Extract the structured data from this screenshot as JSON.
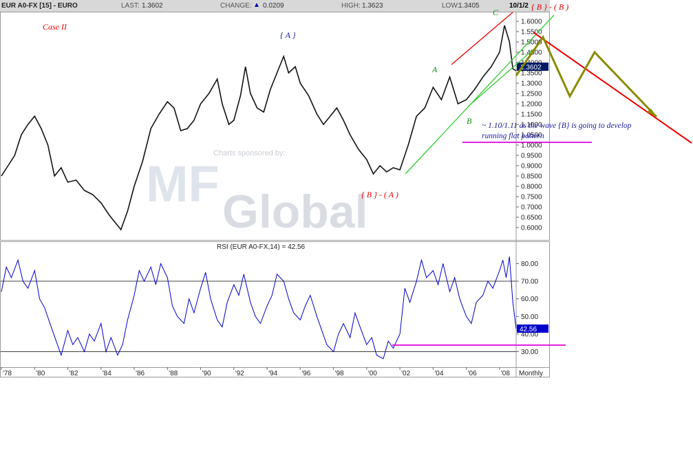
{
  "header": {
    "symbol": "EUR A0-FX [15] - EURO",
    "last_label": "LAST:",
    "last_value": "1.3602",
    "change_label": "CHANGE:",
    "change_value": "0.0209",
    "high_label": "HIGH:",
    "high_value": "1.3623",
    "low_label": "LOW:",
    "low_value": "1.3405",
    "date": "10/1/2"
  },
  "watermark": {
    "sponsor": "Charts sponsored by:",
    "mf": "MF",
    "global": "Global"
  },
  "colors": {
    "price": "#111111",
    "rsi": "#0000cc",
    "panel_border": "#999999",
    "red": "#ee0000",
    "green": "#33cc33",
    "olive": "#8a8a00",
    "magenta": "#dd00dd",
    "annotation_blue": "#1a1aa0",
    "last_box": "#001a66",
    "rsi_box": "#0000cc"
  },
  "annotations": {
    "case": "Case II",
    "wave_A_top": "{ A }",
    "wave_B_A": "{ B } - ( A )",
    "wave_B_B": "{ B } - ( B )",
    "wave_a": "A",
    "wave_b": "B",
    "wave_c": "C",
    "note_line1": "~ 1.10/1.11 as the wave {B} is going to develop",
    "note_line2": "running flat pattern"
  },
  "chart_data": [
    {
      "type": "line",
      "title": "EUR A0-FX [15] - EURO",
      "ylim": [
        0.55,
        1.63
      ],
      "y_ticks": [
        0.6,
        0.65,
        0.7,
        0.75,
        0.8,
        0.85,
        0.9,
        0.95,
        1.0,
        1.05,
        1.1,
        1.15,
        1.2,
        1.25,
        1.3,
        1.35,
        1.4,
        1.45,
        1.5,
        1.55,
        1.6
      ],
      "y_tick_labels": [
        "0.6000",
        "0.6500",
        "0.7000",
        "0.7500",
        "0.8000",
        "0.8500",
        "0.9000",
        "0.9500",
        "1.0000",
        "1.0500",
        "1.1000",
        "1.1500",
        "1.2000",
        "1.2500",
        "1.3000",
        "1.3500",
        "1.4000",
        "1.4500",
        "1.5000",
        "1.5500",
        "1.6000"
      ],
      "last_value_label": "1.3602",
      "series": [
        {
          "x": [
            1978.0,
            1978.4,
            1978.8,
            1979.2,
            1979.6,
            1980.0,
            1980.4,
            1980.8,
            1981.2,
            1981.6,
            1982.0,
            1982.5,
            1983.0,
            1983.5,
            1984.0,
            1984.5,
            1985.0,
            1985.2,
            1985.6,
            1986.0,
            1986.5,
            1987.0,
            1987.5,
            1988.0,
            1988.4,
            1988.8,
            1989.2,
            1989.6,
            1990.0,
            1990.5,
            1991.0,
            1991.3,
            1991.7,
            1992.0,
            1992.4,
            1992.7,
            1993.0,
            1993.4,
            1993.8,
            1994.2,
            1994.6,
            1995.0,
            1995.3,
            1995.7,
            1996.0,
            1996.5,
            1997.0,
            1997.4,
            1997.8,
            1998.2,
            1998.6,
            1999.0,
            1999.5,
            2000.0,
            2000.4,
            2000.8,
            2001.2,
            2001.6,
            2002.0,
            2002.5,
            2003.0,
            2003.5,
            2004.0,
            2004.5,
            2005.0,
            2005.5,
            2006.0,
            2006.5,
            2007.0,
            2007.5,
            2008.0,
            2008.3,
            2008.6,
            2008.8,
            2009.0
          ],
          "values": [
            0.85,
            0.9,
            0.95,
            1.05,
            1.1,
            1.14,
            1.08,
            1.0,
            0.85,
            0.89,
            0.82,
            0.83,
            0.78,
            0.76,
            0.72,
            0.66,
            0.61,
            0.59,
            0.68,
            0.8,
            0.92,
            1.08,
            1.15,
            1.21,
            1.18,
            1.07,
            1.08,
            1.12,
            1.2,
            1.25,
            1.32,
            1.2,
            1.1,
            1.12,
            1.24,
            1.38,
            1.25,
            1.18,
            1.16,
            1.27,
            1.35,
            1.43,
            1.35,
            1.38,
            1.3,
            1.24,
            1.15,
            1.1,
            1.14,
            1.18,
            1.12,
            1.05,
            0.98,
            0.93,
            0.86,
            0.9,
            0.87,
            0.89,
            0.88,
            1.0,
            1.14,
            1.18,
            1.28,
            1.22,
            1.33,
            1.2,
            1.22,
            1.27,
            1.33,
            1.38,
            1.45,
            1.58,
            1.5,
            1.37,
            1.36
          ]
        }
      ]
    },
    {
      "type": "line",
      "title": "RSI (EUR A0-FX,14) = 42.56",
      "ylim": [
        22,
        86
      ],
      "y_ticks": [
        30,
        40,
        50,
        60,
        70,
        80
      ],
      "y_tick_labels": [
        "30.00",
        "40.00",
        "50.00",
        "60.00",
        "70.00",
        "80.00"
      ],
      "reference_lines": [
        30,
        70
      ],
      "last_value_label": "42.56",
      "x_ticks": [
        1978,
        1980,
        1982,
        1984,
        1986,
        1988,
        1990,
        1992,
        1994,
        1996,
        1998,
        2000,
        2002,
        2004,
        2006,
        2008
      ],
      "x_tick_labels": [
        "'78",
        "'80",
        "'82",
        "'84",
        "'86",
        "'88",
        "'90",
        "'92",
        "'94",
        "'96",
        "'98",
        "'00",
        "'02",
        "'04",
        "'06",
        "'08"
      ],
      "x_period_label": "Monthly",
      "series": [
        {
          "x": [
            1978.0,
            1978.3,
            1978.6,
            1979.0,
            1979.3,
            1979.6,
            1980.0,
            1980.3,
            1980.6,
            1981.0,
            1981.3,
            1981.6,
            1982.0,
            1982.3,
            1982.6,
            1983.0,
            1983.3,
            1983.6,
            1984.0,
            1984.3,
            1984.6,
            1985.0,
            1985.3,
            1985.6,
            1986.0,
            1986.3,
            1986.6,
            1987.0,
            1987.3,
            1987.6,
            1988.0,
            1988.3,
            1988.6,
            1989.0,
            1989.3,
            1989.6,
            1990.0,
            1990.3,
            1990.6,
            1991.0,
            1991.3,
            1991.6,
            1992.0,
            1992.3,
            1992.6,
            1993.0,
            1993.3,
            1993.6,
            1994.0,
            1994.3,
            1994.6,
            1995.0,
            1995.3,
            1995.6,
            1996.0,
            1996.3,
            1996.6,
            1997.0,
            1997.3,
            1997.6,
            1998.0,
            1998.3,
            1998.6,
            1999.0,
            1999.3,
            1999.6,
            2000.0,
            2000.3,
            2000.6,
            2001.0,
            2001.3,
            2001.6,
            2002.0,
            2002.3,
            2002.6,
            2003.0,
            2003.3,
            2003.6,
            2004.0,
            2004.3,
            2004.6,
            2005.0,
            2005.3,
            2005.6,
            2006.0,
            2006.3,
            2006.6,
            2007.0,
            2007.3,
            2007.6,
            2008.0,
            2008.2,
            2008.4,
            2008.6,
            2008.8,
            2009.0
          ],
          "values": [
            64,
            78,
            72,
            82,
            70,
            66,
            76,
            60,
            55,
            44,
            36,
            28,
            42,
            34,
            38,
            30,
            40,
            36,
            46,
            30,
            38,
            28,
            34,
            48,
            62,
            76,
            70,
            78,
            68,
            80,
            72,
            56,
            50,
            46,
            60,
            52,
            66,
            75,
            60,
            48,
            44,
            58,
            68,
            62,
            74,
            58,
            50,
            46,
            56,
            62,
            74,
            70,
            60,
            52,
            48,
            56,
            62,
            50,
            42,
            34,
            30,
            40,
            46,
            38,
            52,
            44,
            34,
            38,
            28,
            26,
            36,
            32,
            40,
            66,
            58,
            70,
            82,
            72,
            76,
            68,
            80,
            64,
            72,
            60,
            50,
            46,
            58,
            62,
            70,
            66,
            76,
            82,
            72,
            84,
            58,
            43
          ]
        }
      ]
    }
  ]
}
